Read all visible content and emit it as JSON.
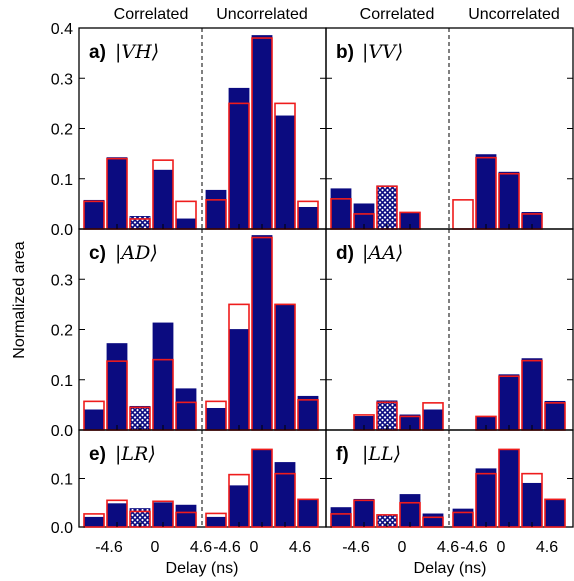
{
  "chart_data": {
    "type": "bar",
    "ylabel": "Normalized area",
    "xlabel": "Delay (ns)",
    "x_tick_labels": [
      "-4.6",
      "0",
      "4.6",
      "-4.6",
      "0",
      "4.6"
    ],
    "header_left": "Correlated",
    "header_right": "Uncorrelated",
    "colors": {
      "measured_fill": "#0b0b80",
      "predicted_outline": "#ee1c1c",
      "hatched_bar": "#0b0b80",
      "divider": "#000000"
    },
    "panels": [
      {
        "letter": "a)",
        "ket": "|VH⟩",
        "ylim": [
          0,
          0.4
        ],
        "yticks": [
          "0.0",
          "0.1",
          "0.2",
          "0.3",
          "0.4"
        ],
        "measured": [
          0.057,
          0.142,
          0.025,
          0.117,
          0.02,
          0.077,
          0.28,
          0.385,
          0.225,
          0.043
        ],
        "predicted": [
          0.055,
          0.14,
          0.02,
          0.137,
          0.055,
          0.058,
          0.25,
          0.38,
          0.25,
          0.055
        ],
        "hatched_index": 2
      },
      {
        "letter": "b)",
        "ket": "|VV⟩",
        "ylim": [
          0,
          0.4
        ],
        "yticks": [],
        "measured": [
          0.08,
          0.05,
          0.086,
          0.033,
          0.0,
          0.0,
          0.148,
          0.113,
          0.033,
          0.0
        ],
        "predicted": [
          0.06,
          0.03,
          0.085,
          0.033,
          0.0,
          0.058,
          0.142,
          0.11,
          0.03,
          0.0
        ],
        "hatched_index": 2
      },
      {
        "letter": "c)",
        "ket": "|AD⟩",
        "ylim": [
          0,
          0.4
        ],
        "yticks": [
          "0.0",
          "0.1",
          "0.2",
          "0.3"
        ],
        "measured": [
          0.04,
          0.172,
          0.047,
          0.213,
          0.082,
          0.043,
          0.2,
          0.387,
          0.25,
          0.067
        ],
        "predicted": [
          0.057,
          0.137,
          0.045,
          0.14,
          0.055,
          0.057,
          0.25,
          0.383,
          0.25,
          0.06
        ],
        "hatched_index": 2
      },
      {
        "letter": "d)",
        "ket": "|AA⟩",
        "ylim": [
          0,
          0.4
        ],
        "yticks": [],
        "measured": [
          0.0,
          0.027,
          0.058,
          0.03,
          0.04,
          0.0,
          0.027,
          0.11,
          0.142,
          0.057
        ],
        "predicted": [
          0.0,
          0.03,
          0.055,
          0.027,
          0.054,
          0.0,
          0.027,
          0.107,
          0.138,
          0.054
        ],
        "hatched_index": 2
      },
      {
        "letter": "e)",
        "ket": "|LR⟩",
        "ylim": [
          0,
          0.2
        ],
        "yticks": [
          "0.0",
          "0.1"
        ],
        "measured": [
          0.02,
          0.048,
          0.038,
          0.05,
          0.045,
          0.02,
          0.085,
          0.16,
          0.133,
          0.057
        ],
        "predicted": [
          0.027,
          0.055,
          0.032,
          0.053,
          0.03,
          0.028,
          0.108,
          0.16,
          0.11,
          0.057
        ],
        "hatched_index": 2
      },
      {
        "letter": "f)",
        "ket": "|LL⟩",
        "ylim": [
          0,
          0.2
        ],
        "yticks": [],
        "measured": [
          0.04,
          0.057,
          0.025,
          0.067,
          0.027,
          0.037,
          0.12,
          0.16,
          0.09,
          0.057
        ],
        "predicted": [
          0.027,
          0.055,
          0.025,
          0.05,
          0.02,
          0.03,
          0.11,
          0.16,
          0.11,
          0.057
        ],
        "hatched_index": 2
      }
    ]
  }
}
